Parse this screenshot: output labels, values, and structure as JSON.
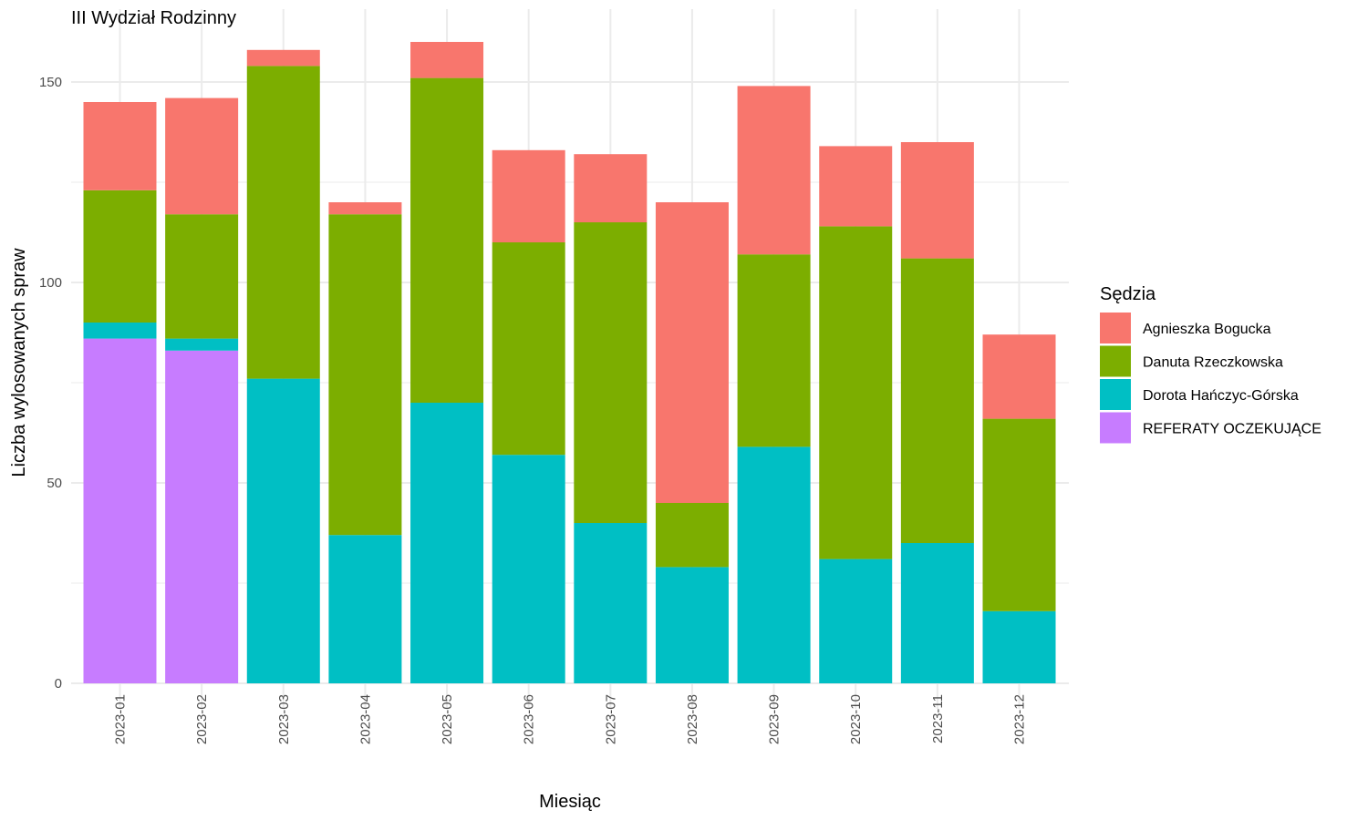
{
  "chart_data": {
    "type": "bar",
    "stacked": true,
    "title": "III Wydział Rodzinny",
    "xlabel": "Miesiąc",
    "ylabel": "Liczba wylosowanych spraw",
    "ylim": [
      0,
      160
    ],
    "yticks": [
      0,
      50,
      100,
      150
    ],
    "grid": true,
    "legend_title": "Sędzia",
    "legend_position": "right",
    "categories": [
      "2023-01",
      "2023-02",
      "2023-03",
      "2023-04",
      "2023-05",
      "2023-06",
      "2023-07",
      "2023-08",
      "2023-09",
      "2023-10",
      "2023-11",
      "2023-12"
    ],
    "series": [
      {
        "name": "Agnieszka Bogucka",
        "color": "#F8766D",
        "values": [
          22,
          29,
          4,
          3,
          9,
          23,
          17,
          75,
          42,
          20,
          29,
          21
        ]
      },
      {
        "name": "Danuta Rzeczkowska",
        "color": "#7CAE00",
        "values": [
          33,
          31,
          78,
          80,
          81,
          53,
          75,
          16,
          48,
          83,
          71,
          48
        ]
      },
      {
        "name": "Dorota Hańczyc-Górska",
        "color": "#00BFC4",
        "values": [
          4,
          3,
          76,
          37,
          70,
          57,
          40,
          29,
          59,
          31,
          35,
          18
        ]
      },
      {
        "name": "REFERATY OCZEKUJĄCE",
        "color": "#C77CFF",
        "values": [
          86,
          83,
          0,
          0,
          0,
          0,
          0,
          0,
          0,
          0,
          0,
          0
        ]
      }
    ]
  }
}
